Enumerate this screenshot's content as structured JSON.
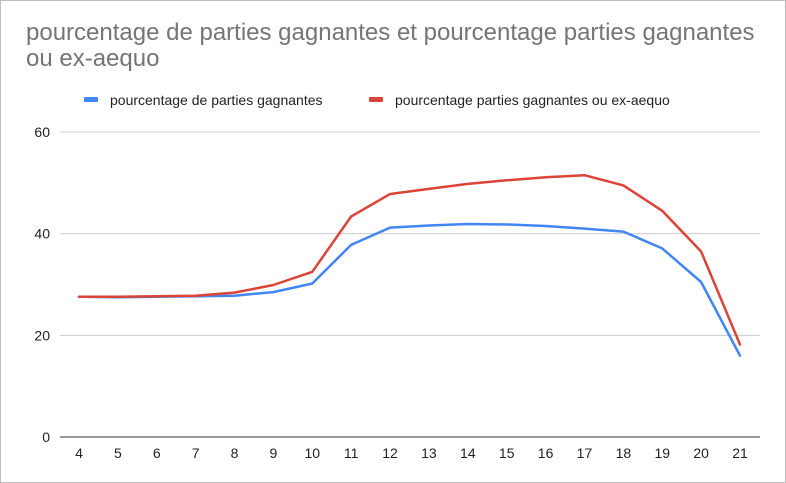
{
  "chart_data": {
    "type": "line",
    "title": "pourcentage de parties gagnantes et pourcentage parties gagnantes ou ex-aequo",
    "xlabel": "",
    "ylabel": "",
    "ylim": [
      0,
      60
    ],
    "yticks": [
      0,
      20,
      40,
      60
    ],
    "categories": [
      "4",
      "5",
      "6",
      "7",
      "8",
      "9",
      "10",
      "11",
      "12",
      "13",
      "14",
      "15",
      "16",
      "17",
      "18",
      "19",
      "20",
      "21"
    ],
    "legend_position": "top",
    "grid": true,
    "series": [
      {
        "name": "pourcentage de parties gagnantes",
        "color": "#4285f4",
        "values": [
          27.6,
          27.5,
          27.6,
          27.7,
          27.8,
          28.5,
          30.2,
          37.8,
          41.2,
          41.6,
          41.9,
          41.8,
          41.5,
          41.0,
          40.4,
          37.1,
          30.5,
          16.0
        ]
      },
      {
        "name": "pourcentage parties gagnantes ou ex-aequo",
        "color": "#db4437",
        "values": [
          27.6,
          27.6,
          27.7,
          27.8,
          28.4,
          29.9,
          32.5,
          43.4,
          47.8,
          48.8,
          49.8,
          50.5,
          51.1,
          51.5,
          49.5,
          44.5,
          36.5,
          18.2
        ]
      }
    ]
  }
}
